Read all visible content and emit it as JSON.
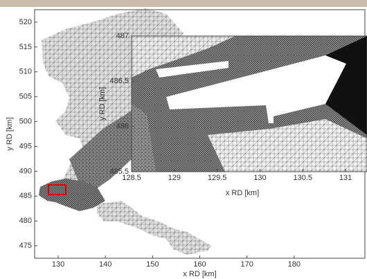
{
  "chart_data": [
    {
      "type": "mesh",
      "xlabel": "x RD [km]",
      "ylabel": "y RD [km]",
      "xlim": [
        125,
        195
      ],
      "ylim": [
        472.5,
        522.5
      ],
      "xticks": [
        130,
        140,
        150,
        160,
        170,
        180
      ],
      "yticks": [
        475,
        480,
        485,
        490,
        495,
        500,
        505,
        510,
        515,
        520
      ]
    },
    {
      "type": "mesh",
      "xlabel": "x RD [km]",
      "ylabel": "y RD [km]",
      "xlim": [
        128.5,
        131.25
      ],
      "ylim": [
        485.5,
        487
      ],
      "xticks": [
        128.5,
        129,
        129.5,
        130,
        130.5,
        131
      ],
      "yticks": [
        485.5,
        486,
        486.5,
        487
      ]
    }
  ]
}
